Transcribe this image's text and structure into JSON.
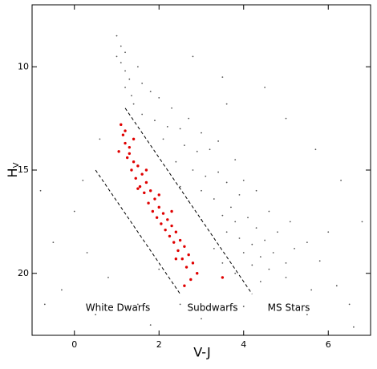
{
  "chart_data": {
    "type": "scatter",
    "xlabel": "V-J",
    "ylabel": "H",
    "ylabel_subscript": "V",
    "xlim": [
      -1,
      7
    ],
    "ylim": [
      7,
      23
    ],
    "y_inverted": true,
    "xticks": [
      0,
      2,
      4,
      6
    ],
    "yticks": [
      10,
      15,
      20
    ],
    "grid": false,
    "annotations": [
      "White Dwarfs",
      "Subdwarfs",
      "MS Stars"
    ],
    "reference_lines": [
      {
        "x": [
          0.5,
          2.5
        ],
        "y": [
          15,
          21
        ]
      },
      {
        "x": [
          1.2,
          4.2
        ],
        "y": [
          12,
          21
        ]
      }
    ],
    "series": [
      {
        "color": "#555555",
        "x": [
          1.0,
          1.1,
          1.2,
          1.1,
          1.2,
          1.3,
          1.2,
          1.35,
          1.4,
          1.0,
          1.5,
          1.6,
          1.8,
          2.0,
          1.6,
          1.9,
          2.2,
          2.5,
          2.1,
          2.6,
          2.9,
          3.2,
          2.4,
          2.8,
          3.1,
          3.4,
          3.6,
          3.0,
          3.3,
          3.7,
          3.9,
          3.5,
          3.8,
          4.1,
          4.3,
          3.6,
          3.9,
          4.2,
          4.5,
          4.0,
          4.4,
          4.7,
          4.2,
          4.6,
          5.0,
          3.3,
          3.0,
          2.7,
          2.5,
          4.8,
          5.2,
          5.0,
          4.4,
          3.8,
          3.5,
          2.3,
          2.7,
          3.0,
          3.4,
          3.8,
          4.0,
          4.3,
          4.6,
          5.1,
          5.5,
          5.8,
          6.2,
          5.6,
          0.0,
          -0.5,
          0.3,
          0.8,
          -0.3,
          1.5,
          0.2,
          -0.8,
          0.6,
          2.0,
          2.5,
          3.0,
          4.0,
          5.5,
          6.5,
          6.8,
          6.3,
          5.7,
          5.0,
          4.5,
          3.5,
          2.8,
          6.0,
          1.8,
          0.5,
          -0.7,
          6.6,
          3.6
        ],
        "y": [
          8.5,
          9.0,
          9.3,
          9.8,
          10.2,
          10.6,
          11.0,
          11.4,
          11.8,
          9.5,
          10.0,
          10.8,
          11.2,
          11.5,
          12.3,
          12.6,
          12.9,
          13.0,
          13.5,
          13.8,
          14.1,
          14.0,
          14.6,
          15.0,
          15.3,
          15.1,
          15.6,
          16.0,
          16.4,
          16.8,
          16.2,
          17.2,
          17.5,
          17.3,
          17.8,
          18.0,
          18.3,
          18.6,
          18.4,
          19.0,
          19.2,
          19.0,
          19.6,
          19.8,
          19.5,
          18.8,
          17.4,
          16.5,
          15.8,
          18.0,
          18.8,
          20.2,
          20.4,
          20.0,
          19.5,
          12.0,
          12.5,
          13.2,
          13.6,
          14.5,
          15.5,
          16.0,
          17.0,
          17.5,
          18.5,
          19.4,
          20.6,
          20.8,
          17.0,
          18.5,
          19.0,
          20.2,
          20.8,
          21.5,
          15.5,
          16.0,
          13.5,
          19.8,
          21.5,
          22.2,
          21.6,
          22.0,
          21.5,
          17.5,
          15.5,
          14.0,
          12.5,
          11.0,
          10.5,
          9.5,
          18.0,
          22.5,
          22.0,
          21.5,
          22.6,
          11.8
        ]
      },
      {
        "color": "#e00000",
        "x": [
          1.1,
          1.15,
          1.2,
          1.05,
          1.25,
          1.3,
          1.4,
          1.35,
          1.5,
          1.45,
          1.6,
          1.55,
          1.7,
          1.65,
          1.8,
          1.75,
          1.9,
          1.85,
          2.0,
          1.95,
          2.1,
          2.05,
          2.2,
          2.15,
          2.3,
          2.25,
          2.4,
          2.35,
          2.5,
          2.45,
          2.6,
          2.55,
          2.7,
          2.65,
          2.8,
          2.75,
          2.9,
          2.6,
          1.2,
          1.3,
          1.5,
          1.7,
          1.4,
          2.0,
          2.3,
          2.4,
          3.5
        ],
        "y": [
          12.8,
          13.3,
          13.7,
          14.1,
          14.4,
          13.9,
          14.6,
          15.0,
          14.8,
          15.4,
          15.2,
          15.8,
          15.6,
          16.1,
          16.0,
          16.6,
          16.4,
          17.0,
          16.8,
          17.3,
          17.1,
          17.6,
          17.4,
          17.9,
          17.7,
          18.2,
          18.0,
          18.5,
          18.4,
          18.9,
          18.7,
          19.3,
          19.1,
          19.7,
          19.5,
          20.3,
          20.0,
          20.6,
          13.1,
          14.2,
          15.9,
          15.0,
          13.5,
          16.2,
          17.0,
          19.3,
          20.2
        ]
      }
    ]
  }
}
